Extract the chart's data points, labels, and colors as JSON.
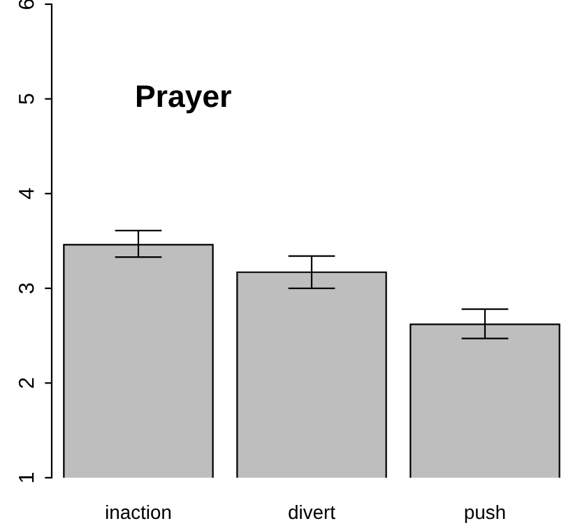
{
  "chart_data": {
    "type": "bar",
    "categories": [
      "inaction",
      "divert",
      "push"
    ],
    "values": [
      3.46,
      3.17,
      2.62
    ],
    "errors": [
      [
        3.33,
        3.61
      ],
      [
        3.0,
        3.34
      ],
      [
        2.47,
        2.78
      ]
    ],
    "color": "#bebebe",
    "ylim": [
      1,
      6
    ],
    "yticks": [
      1,
      2,
      3,
      4,
      5,
      6
    ],
    "annotations": [
      "Prayer"
    ],
    "grid": false,
    "legend": false
  }
}
